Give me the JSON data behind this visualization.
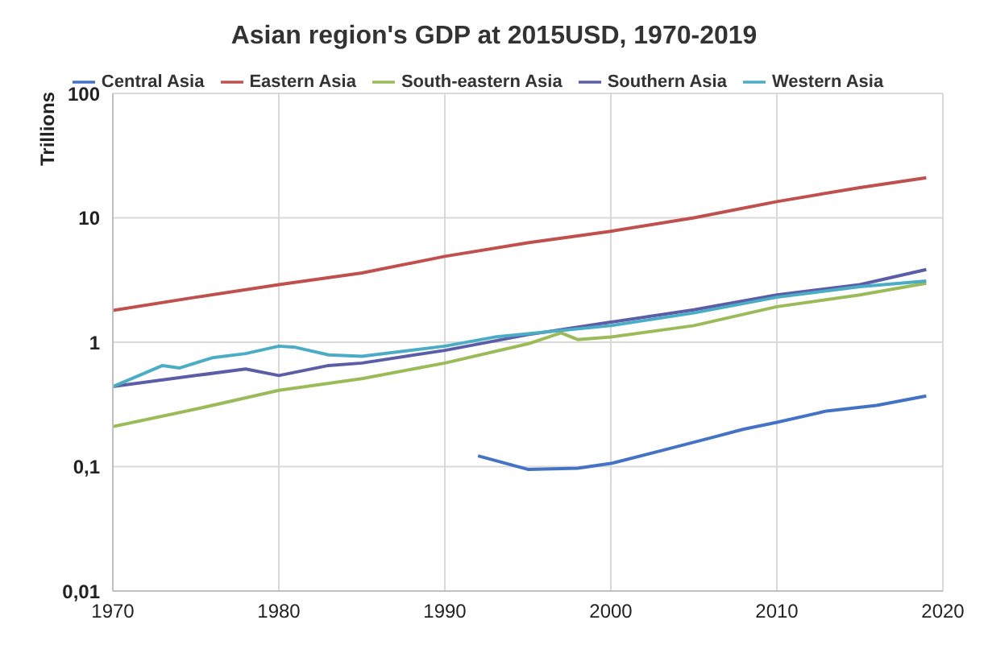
{
  "chart_data": {
    "type": "line",
    "title": "Asian region's GDP at 2015USD, 1970-2019",
    "ylabel": "Trillions",
    "log": "y",
    "grid": true,
    "legend": "top",
    "xlim": [
      1970,
      2020
    ],
    "xticks": [
      1970,
      1980,
      1990,
      2000,
      2010,
      2020
    ],
    "ylim": [
      0.01,
      100
    ],
    "yticks": [
      {
        "value": 0.01,
        "label": "0,01"
      },
      {
        "value": 0.1,
        "label": "0,1"
      },
      1,
      10,
      100
    ],
    "series": [
      {
        "name": "Central Asia",
        "color": "#4472c4",
        "x": [
          1992,
          1995,
          1998,
          2000,
          2003,
          2006,
          2008,
          2010,
          2013,
          2016,
          2019
        ],
        "values": [
          0.122,
          0.095,
          0.097,
          0.106,
          0.134,
          0.17,
          0.2,
          0.227,
          0.28,
          0.31,
          0.37
        ]
      },
      {
        "name": "Eastern Asia",
        "color": "#c0504d",
        "x": [
          1970,
          1975,
          1980,
          1985,
          1990,
          1995,
          2000,
          2005,
          2010,
          2015,
          2019
        ],
        "values": [
          1.8,
          2.3,
          2.9,
          3.6,
          4.9,
          6.3,
          7.8,
          10,
          13.5,
          17.5,
          21
        ]
      },
      {
        "name": "South-eastern Asia",
        "color": "#9bbb59",
        "x": [
          1970,
          1975,
          1980,
          1985,
          1990,
          1995,
          1997,
          1998,
          2000,
          2005,
          2010,
          2015,
          2019
        ],
        "values": [
          0.21,
          0.29,
          0.41,
          0.51,
          0.68,
          0.97,
          1.19,
          1.05,
          1.1,
          1.36,
          1.93,
          2.4,
          2.98
        ]
      },
      {
        "name": "Southern Asia",
        "color": "#5b5ea6",
        "x": [
          1970,
          1975,
          1978,
          1980,
          1983,
          1985,
          1990,
          1995,
          2000,
          2005,
          2010,
          2015,
          2019
        ],
        "values": [
          0.44,
          0.54,
          0.61,
          0.54,
          0.65,
          0.68,
          0.86,
          1.15,
          1.45,
          1.82,
          2.4,
          2.9,
          3.84
        ]
      },
      {
        "name": "Western Asia",
        "color": "#4bacc6",
        "x": [
          1970,
          1973,
          1974,
          1976,
          1978,
          1980,
          1981,
          1983,
          1985,
          1990,
          1993,
          1995,
          2000,
          2005,
          2010,
          2015,
          2019
        ],
        "values": [
          0.44,
          0.65,
          0.62,
          0.75,
          0.81,
          0.93,
          0.91,
          0.79,
          0.77,
          0.93,
          1.1,
          1.17,
          1.36,
          1.72,
          2.3,
          2.8,
          3.1
        ]
      }
    ]
  }
}
